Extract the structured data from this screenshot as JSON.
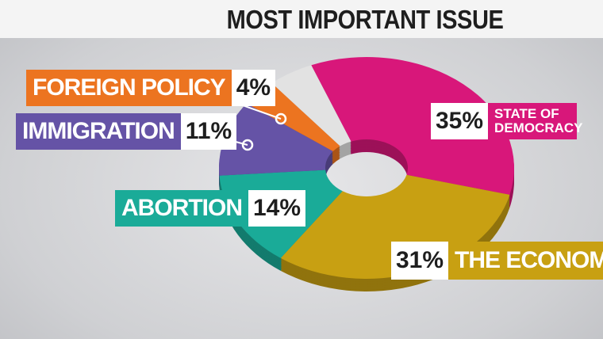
{
  "title": "MOST IMPORTANT ISSUE",
  "chart_data": {
    "type": "pie",
    "donut": true,
    "categories": [
      "STATE OF DEMOCRACY",
      "THE ECONOMY",
      "ABORTION",
      "IMMIGRATION",
      "FOREIGN POLICY",
      null
    ],
    "values": [
      35,
      31,
      14,
      11,
      4,
      5
    ],
    "value_labels": [
      "35%",
      "31%",
      "14%",
      "11%",
      "4%",
      null
    ],
    "colors": [
      "#d8177a",
      "#c8a012",
      "#1aab98",
      "#6553a6",
      "#ec7420",
      "#e2e2e2"
    ]
  }
}
